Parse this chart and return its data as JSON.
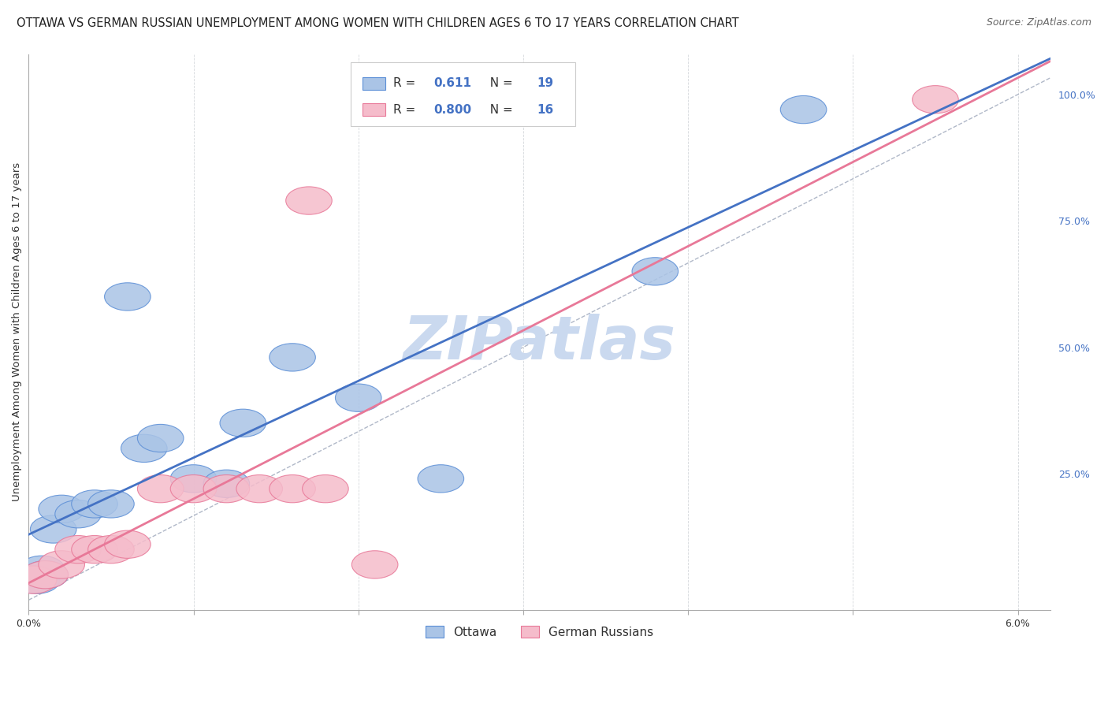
{
  "title": "OTTAWA VS GERMAN RUSSIAN UNEMPLOYMENT AMONG WOMEN WITH CHILDREN AGES 6 TO 17 YEARS CORRELATION CHART",
  "source": "Source: ZipAtlas.com",
  "ylabel": "Unemployment Among Women with Children Ages 6 to 17 years",
  "xlim": [
    0.0,
    0.062
  ],
  "ylim": [
    -0.02,
    1.08
  ],
  "xticks": [
    0.0,
    0.01,
    0.02,
    0.03,
    0.04,
    0.05,
    0.06
  ],
  "xticklabels": [
    "0.0%",
    "",
    "",
    "",
    "",
    "",
    "6.0%"
  ],
  "yticks_right": [
    0.25,
    0.5,
    0.75,
    1.0
  ],
  "yticklabels_right": [
    "25.0%",
    "50.0%",
    "75.0%",
    "100.0%"
  ],
  "ottawa_x": [
    0.0005,
    0.0008,
    0.001,
    0.0015,
    0.002,
    0.003,
    0.004,
    0.005,
    0.006,
    0.007,
    0.008,
    0.01,
    0.012,
    0.013,
    0.016,
    0.02,
    0.025,
    0.038,
    0.047
  ],
  "ottawa_y": [
    0.04,
    0.06,
    0.05,
    0.14,
    0.18,
    0.17,
    0.19,
    0.19,
    0.6,
    0.3,
    0.32,
    0.24,
    0.23,
    0.35,
    0.48,
    0.4,
    0.24,
    0.65,
    0.97
  ],
  "german_x": [
    0.0003,
    0.001,
    0.002,
    0.003,
    0.004,
    0.005,
    0.006,
    0.008,
    0.01,
    0.012,
    0.014,
    0.016,
    0.017,
    0.018,
    0.021,
    0.055
  ],
  "german_y": [
    0.04,
    0.05,
    0.07,
    0.1,
    0.1,
    0.1,
    0.11,
    0.22,
    0.22,
    0.22,
    0.22,
    0.22,
    0.79,
    0.22,
    0.07,
    0.99
  ],
  "ottawa_fill": "#aac4e6",
  "ottawa_edge": "#5b8ed6",
  "german_fill": "#f5bccb",
  "german_edge": "#e87898",
  "blue_line_color": "#4472c4",
  "pink_line_color": "#e87898",
  "ref_line_color": "#b0b8c8",
  "R_ottawa": 0.611,
  "N_ottawa": 19,
  "R_german": 0.8,
  "N_german": 16,
  "watermark_text": "ZIPatlas",
  "watermark_color": "#cad9ef",
  "grid_color": "#d5d8dc",
  "title_fontsize": 10.5,
  "source_fontsize": 9,
  "ylabel_fontsize": 9.5,
  "tick_fontsize": 9,
  "legend_fontsize": 11,
  "watermark_fontsize": 55
}
